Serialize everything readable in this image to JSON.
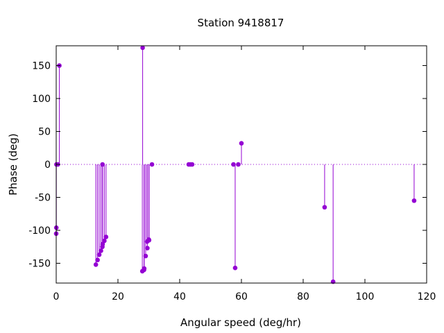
{
  "chart_data": {
    "type": "scatter",
    "title": "Station 9418817",
    "xlabel": "Angular speed (deg/hr)",
    "ylabel": "Phase (deg)",
    "xlim": [
      0,
      120
    ],
    "ylim": [
      -180,
      180
    ],
    "xticks": [
      0,
      20,
      40,
      60,
      80,
      100,
      120
    ],
    "yticks": [
      -150,
      -100,
      -50,
      0,
      50,
      100,
      150
    ],
    "xtick_labels": [
      "0",
      "20",
      "40",
      "60",
      "80",
      "100",
      "120"
    ],
    "ytick_labels": [
      "-150",
      "-100",
      "-50",
      "0",
      "50",
      "100",
      "150"
    ],
    "style": "impulses with points",
    "zero_line": "dotted",
    "grid": false,
    "legend": "none",
    "color": "#9400d3",
    "x": [
      0.0,
      0.04,
      0.08,
      0.54,
      1.02,
      12.85,
      13.4,
      13.94,
      14.5,
      14.96,
      15.0,
      15.04,
      15.59,
      16.14,
      27.9,
      28.0,
      28.44,
      28.51,
      28.98,
      29.46,
      29.53,
      30.0,
      30.08,
      31.02,
      42.93,
      43.48,
      44.03,
      57.42,
      57.97,
      58.98,
      60.0,
      86.95,
      89.7,
      115.94
    ],
    "y": [
      -105,
      -96,
      0,
      0,
      150,
      -152,
      -145,
      -137,
      -131,
      -125,
      0,
      -121,
      -116,
      -110,
      -162,
      177,
      -160,
      -158,
      -139,
      -117,
      -127,
      -114,
      -115,
      0,
      0,
      0,
      0,
      0,
      -157,
      0,
      32,
      -65,
      -178,
      -55
    ]
  }
}
